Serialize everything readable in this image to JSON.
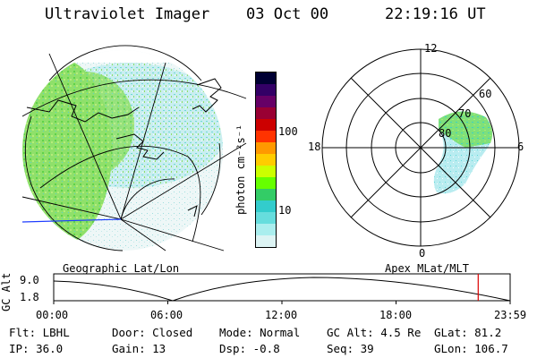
{
  "header": {
    "title": "Ultraviolet Imager",
    "date": "03 Oct 00",
    "time": "22:19:16 UT"
  },
  "left_panel": {
    "caption": "Geographic Lat/Lon"
  },
  "colorbar": {
    "label": "photon cm⁻²s⁻¹",
    "ticks": [
      "100",
      "10"
    ],
    "colors": [
      "#000033",
      "#330066",
      "#660066",
      "#990033",
      "#cc0000",
      "#ff3300",
      "#ff9900",
      "#ffcc00",
      "#ccff00",
      "#66ff00",
      "#33cc66",
      "#33cccc",
      "#66dddd",
      "#aaeeee",
      "#ddf4f4"
    ]
  },
  "right_panel": {
    "caption": "Apex MLat/MLT",
    "mlt_labels": {
      "top": "12",
      "left": "18",
      "right": "6",
      "bottom": "0"
    },
    "lat_labels": [
      "60",
      "70",
      "80"
    ]
  },
  "timeline": {
    "ylabel": "GC Alt",
    "ymax": "9.0",
    "ymin": "1.8",
    "ticks": [
      "00:00",
      "06:00",
      "12:00",
      "18:00",
      "23:59"
    ],
    "current_time_hours": 22.32,
    "marker_color": "#dd0000"
  },
  "info": {
    "flt": "Flt: LBHL",
    "ip": "IP: 36.0",
    "door": "Door: Closed",
    "gain": "Gain: 13",
    "mode": "Mode: Normal",
    "dsp": "Dsp:   -0.8",
    "gcalt": "GC Alt: 4.5 Re",
    "seq": "Seq: 39",
    "glat": "GLat:  81.2",
    "glon": "GLon: 106.7"
  }
}
